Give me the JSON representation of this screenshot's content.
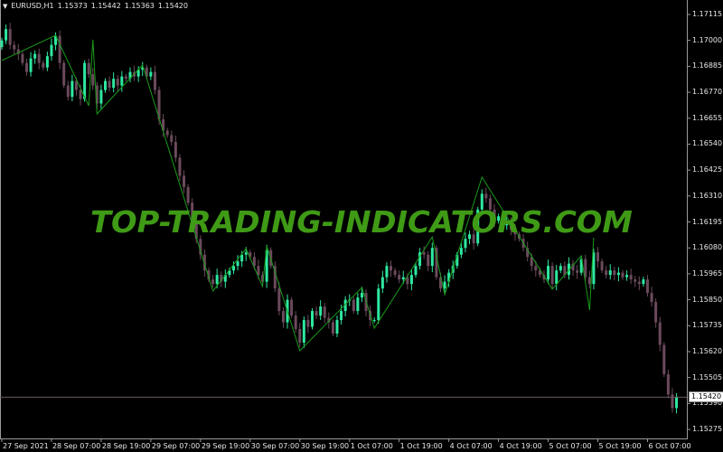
{
  "header": {
    "menu_icon": "triangle-down-icon",
    "symbol": "EURUSD,H1",
    "open": "1.15373",
    "high": "1.15442",
    "low": "1.15363",
    "close": "1.15420"
  },
  "watermark": "TOP-TRADING-INDICATORS.COM",
  "current_price": "1.15420",
  "colors": {
    "background": "#000000",
    "bull_candle": "#2ee8a0",
    "bear_candle": "#6b4a5c",
    "zigzag": "#1a9a1a",
    "watermark": "#3f9a16",
    "price_line": "#6b5a60",
    "axis": "#9a9a9a"
  },
  "chart_data": {
    "type": "candlestick",
    "symbol": "EURUSD",
    "timeframe": "H1",
    "y_ticks": [
      "1.17115",
      "1.17000",
      "1.16885",
      "1.16770",
      "1.16655",
      "1.16540",
      "1.16425",
      "1.16310",
      "1.16195",
      "1.16080",
      "1.15965",
      "1.15850",
      "1.15735",
      "1.15620",
      "1.15505",
      "1.15390",
      "1.15275"
    ],
    "ylim": [
      1.1519,
      1.172
    ],
    "x_ticks": [
      "27 Sep 2021",
      "28 Sep 07:00",
      "28 Sep 19:00",
      "29 Sep 07:00",
      "29 Sep 19:00",
      "30 Sep 07:00",
      "30 Sep 19:00",
      "1 Oct 07:00",
      "1 Oct 19:00",
      "4 Oct 07:00",
      "4 Oct 19:00",
      "5 Oct 07:00",
      "5 Oct 19:00",
      "6 Oct 07:00"
    ],
    "first_open": 1.1697,
    "closes": [
      1.17,
      1.1705,
      1.1698,
      1.1696,
      1.1694,
      1.169,
      1.1686,
      1.1692,
      1.1694,
      1.169,
      1.1688,
      1.1693,
      1.1698,
      1.1702,
      1.169,
      1.168,
      1.1675,
      1.1682,
      1.1678,
      1.1674,
      1.169,
      1.1685,
      1.168,
      1.1672,
      1.1678,
      1.1682,
      1.1679,
      1.1683,
      1.168,
      1.1684,
      1.1683,
      1.1686,
      1.1684,
      1.1687,
      1.1688,
      1.1684,
      1.1686,
      1.1678,
      1.1665,
      1.166,
      1.1658,
      1.1655,
      1.1648,
      1.164,
      1.1635,
      1.1628,
      1.162,
      1.1612,
      1.1605,
      1.1598,
      1.1594,
      1.1592,
      1.1596,
      1.1593,
      1.1596,
      1.1598,
      1.16,
      1.1602,
      1.1605,
      1.1606,
      1.1604,
      1.16,
      1.1596,
      1.1593,
      1.1607,
      1.16,
      1.159,
      1.158,
      1.1575,
      1.1585,
      1.1578,
      1.1572,
      1.1566,
      1.1576,
      1.1573,
      1.158,
      1.1578,
      1.1582,
      1.1577,
      1.1575,
      1.157,
      1.1576,
      1.158,
      1.1585,
      1.1585,
      1.158,
      1.1586,
      1.1588,
      1.158,
      1.1576,
      1.1576,
      1.159,
      1.1595,
      1.16,
      1.1598,
      1.1596,
      1.1594,
      1.1595,
      1.1592,
      1.1596,
      1.16,
      1.1606,
      1.1605,
      1.16,
      1.1608,
      1.1595,
      1.159,
      1.1593,
      1.1597,
      1.16,
      1.1605,
      1.1608,
      1.1612,
      1.1614,
      1.161,
      1.1625,
      1.1632,
      1.163,
      1.1625,
      1.162,
      1.1622,
      1.1618,
      1.162,
      1.1616,
      1.1614,
      1.1612,
      1.1608,
      1.1604,
      1.16,
      1.1598,
      1.1596,
      1.1594,
      1.16,
      1.1592,
      1.1598,
      1.16,
      1.1596,
      1.1601,
      1.1598,
      1.1597,
      1.1603,
      1.1595,
      1.1592,
      1.1606,
      1.1602,
      1.1598,
      1.1596,
      1.1598,
      1.1596,
      1.1597,
      1.1595,
      1.1596,
      1.1594,
      1.1593,
      1.1592,
      1.1594,
      1.1588,
      1.1584,
      1.1575,
      1.1565,
      1.1552,
      1.1543,
      1.1537,
      1.1542
    ],
    "zigzag": [
      {
        "time": "27 Sep 19:00",
        "price": 1.16911
      },
      {
        "time": "28 Sep 08:00",
        "price": 1.17023
      },
      {
        "time": "28 Sep 16:00",
        "price": 1.1671
      },
      {
        "time": "28 Sep 17:00",
        "price": 1.17003
      },
      {
        "time": "28 Sep 18:00",
        "price": 1.16674
      },
      {
        "time": "29 Sep 05:00",
        "price": 1.16891
      },
      {
        "time": "29 Sep 22:00",
        "price": 1.15889
      },
      {
        "time": "30 Sep 06:00",
        "price": 1.16077
      },
      {
        "time": "30 Sep 10:00",
        "price": 1.15909
      },
      {
        "time": "30 Sep 11:00",
        "price": 1.16089
      },
      {
        "time": "30 Sep 19:00",
        "price": 1.15624
      },
      {
        "time": "1 Oct 10:00",
        "price": 1.15905
      },
      {
        "time": "1 Oct 13:00",
        "price": 1.15724
      },
      {
        "time": "4 Oct 03:00",
        "price": 1.16129
      },
      {
        "time": "4 Oct 06:00",
        "price": 1.15873
      },
      {
        "time": "4 Oct 15:00",
        "price": 1.16394
      },
      {
        "time": "5 Oct 08:00",
        "price": 1.15897
      },
      {
        "time": "5 Oct 15:00",
        "price": 1.16045
      },
      {
        "time": "5 Oct 17:00",
        "price": 1.15804
      },
      {
        "time": "5 Oct 18:00",
        "price": 1.16125
      }
    ],
    "grid": false
  }
}
